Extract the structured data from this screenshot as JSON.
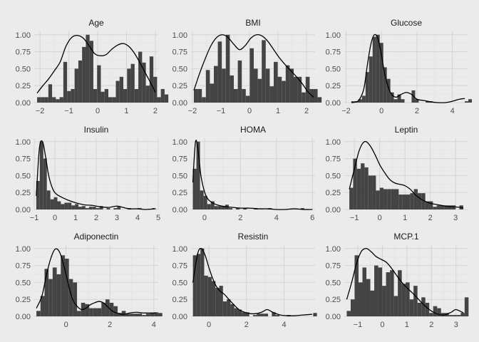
{
  "chart_data": [
    {
      "type": "bar",
      "title": "Age",
      "xlim": [
        -2.2,
        2.1
      ],
      "ylim": [
        0,
        1.05
      ],
      "xticks": [
        -2,
        -1,
        0,
        1,
        2
      ],
      "yticks": [
        0,
        0.25,
        0.5,
        0.75,
        1
      ],
      "ytick_labels": [
        "0.00",
        "0.25",
        "0.50",
        "0.75",
        "1.00"
      ],
      "hist_start": -2.1,
      "bin_width": 0.13,
      "histogram": [
        0.08,
        0.08,
        0.08,
        0.27,
        0.08,
        0.05,
        0.08,
        0.6,
        0.17,
        0.2,
        0.5,
        0.62,
        0.82,
        1.0,
        0.91,
        0.2,
        0.55,
        0.16,
        0.2,
        0.08,
        0.08,
        0.32,
        0.38,
        0.2,
        0.5,
        0.57,
        0.2,
        0.75,
        0.59,
        0.25,
        0.68,
        0.38,
        0.08,
        0.2,
        0.12
      ],
      "density": {
        "x": [
          -2.1,
          -1.9,
          -1.7,
          -1.5,
          -1.3,
          -1.1,
          -0.9,
          -0.7,
          -0.5,
          -0.3,
          -0.1,
          0.1,
          0.3,
          0.5,
          0.7,
          0.9,
          1.1,
          1.3,
          1.5,
          1.7,
          1.9,
          2.0
        ],
        "y": [
          0.14,
          0.25,
          0.35,
          0.47,
          0.6,
          0.83,
          0.96,
          0.99,
          0.95,
          0.84,
          0.72,
          0.69,
          0.71,
          0.79,
          0.85,
          0.87,
          0.82,
          0.71,
          0.56,
          0.4,
          0.24,
          0.15
        ]
      }
    },
    {
      "type": "bar",
      "title": "BMI",
      "xlim": [
        -2.05,
        2.3
      ],
      "ylim": [
        0,
        1.05
      ],
      "xticks": [
        -2,
        -1,
        0,
        1,
        2
      ],
      "yticks": [
        0,
        0.25,
        0.5,
        0.75,
        1
      ],
      "ytick_labels": [
        "0.00",
        "0.25",
        "0.50",
        "0.75",
        "1.00"
      ],
      "hist_start": -1.95,
      "bin_width": 0.14,
      "histogram": [
        0.2,
        0.2,
        0.08,
        0.48,
        0.28,
        0.54,
        0.9,
        0.5,
        1.0,
        0.4,
        0.2,
        0.62,
        0.2,
        0.1,
        0.8,
        0.5,
        0.35,
        0.92,
        0.5,
        0.24,
        0.6,
        0.38,
        0.32,
        0.55,
        0.5,
        0.38,
        0.38,
        0.15,
        0.38,
        0.2,
        0.2,
        0.08
      ],
      "density": {
        "x": [
          -1.95,
          -1.75,
          -1.55,
          -1.35,
          -1.15,
          -0.95,
          -0.75,
          -0.55,
          -0.35,
          -0.15,
          0.05,
          0.25,
          0.45,
          0.65,
          0.85,
          1.05,
          1.25,
          1.45,
          1.65,
          1.85,
          2.05,
          2.25
        ],
        "y": [
          0.18,
          0.43,
          0.65,
          0.84,
          0.96,
          1.0,
          0.96,
          0.86,
          0.78,
          0.84,
          0.95,
          1.0,
          0.98,
          0.9,
          0.78,
          0.66,
          0.56,
          0.47,
          0.38,
          0.28,
          0.16,
          0.08
        ]
      }
    },
    {
      "type": "bar",
      "title": "Glucose",
      "xlim": [
        -2.1,
        4.9
      ],
      "ylim": [
        0,
        1.05
      ],
      "xticks": [
        -2,
        0,
        2,
        4
      ],
      "yticks": [
        0,
        0.25,
        0.5,
        0.75,
        1
      ],
      "ytick_labels": [
        "0.00",
        "0.25",
        "0.50",
        "0.75",
        "1.00"
      ],
      "hist_start": -1.7,
      "bin_width": 0.2,
      "histogram": [
        0.02,
        0.02,
        0.05,
        0.1,
        0.45,
        0.68,
        0.97,
        1.0,
        0.88,
        0.52,
        0.35,
        0.15,
        0.05,
        0.12,
        0.05,
        0.0,
        0.0,
        0.18,
        0.05,
        0.0,
        0.0,
        0.02,
        0.02,
        0.0,
        0.0,
        0.0,
        0.0,
        0.0,
        0.0,
        0.0,
        0.0,
        0.0,
        0.02,
        0.05
      ],
      "density": {
        "x": [
          -1.7,
          -1.3,
          -1.0,
          -0.8,
          -0.6,
          -0.4,
          -0.2,
          0.0,
          0.2,
          0.5,
          0.8,
          1.1,
          1.4,
          1.7,
          2.0,
          2.4,
          2.8,
          3.2,
          3.6,
          4.0,
          4.4,
          4.7
        ],
        "y": [
          0.0,
          0.03,
          0.2,
          0.55,
          0.86,
          1.0,
          0.94,
          0.7,
          0.4,
          0.15,
          0.08,
          0.12,
          0.15,
          0.12,
          0.05,
          0.03,
          0.01,
          0.0,
          0.0,
          0.02,
          0.05,
          0.06
        ]
      }
    },
    {
      "type": "bar",
      "title": "Insulin",
      "xlim": [
        -1.0,
        5.0
      ],
      "ylim": [
        0,
        1.05
      ],
      "xticks": [
        -1,
        0,
        1,
        2,
        3,
        4,
        5
      ],
      "yticks": [
        0,
        0.25,
        0.5,
        0.75,
        1
      ],
      "ytick_labels": [
        "0.00",
        "0.25",
        "0.50",
        "0.75",
        "1.00"
      ],
      "hist_start": -0.9,
      "bin_width": 0.17,
      "histogram": [
        0.42,
        1.0,
        0.75,
        0.28,
        0.15,
        0.18,
        0.12,
        0.08,
        0.1,
        0.1,
        0.06,
        0.08,
        0.04,
        0.05,
        0.02,
        0.04,
        0.04,
        0.02,
        0.05,
        0.0,
        0.02,
        0.0,
        0.02,
        0.04,
        0.0,
        0.0,
        0.02,
        0.0,
        0.0,
        0.02,
        0.0,
        0.0,
        0.0,
        0.02
      ],
      "density": {
        "x": [
          -0.9,
          -0.75,
          -0.6,
          -0.45,
          -0.3,
          -0.1,
          0.1,
          0.4,
          0.7,
          1.0,
          1.4,
          1.8,
          2.2,
          2.6,
          3.0,
          3.3,
          3.6,
          4.0,
          4.4,
          4.8
        ],
        "y": [
          0.2,
          0.9,
          1.0,
          0.78,
          0.5,
          0.3,
          0.22,
          0.17,
          0.13,
          0.1,
          0.07,
          0.06,
          0.04,
          0.03,
          0.05,
          0.03,
          0.01,
          0.01,
          0.0,
          0.01
        ]
      }
    },
    {
      "type": "bar",
      "title": "HOMA",
      "xlim": [
        -0.75,
        6.15
      ],
      "ylim": [
        0,
        1.05
      ],
      "xticks": [
        0,
        2,
        4,
        6
      ],
      "yticks": [
        0,
        0.25,
        0.5,
        0.75,
        1
      ],
      "ytick_labels": [
        "0.00",
        "0.25",
        "0.50",
        "0.75",
        "1.00"
      ],
      "hist_start": -0.65,
      "bin_width": 0.2,
      "histogram": [
        0.6,
        1.0,
        0.28,
        0.2,
        0.08,
        0.12,
        0.05,
        0.05,
        0.05,
        0.07,
        0.02,
        0.0,
        0.02,
        0.0,
        0.02,
        0.0,
        0.0,
        0.02,
        0.0,
        0.0,
        0.0,
        0.02,
        0.0,
        0.0,
        0.0,
        0.0,
        0.0,
        0.0,
        0.0,
        0.0,
        0.02
      ],
      "density": {
        "x": [
          -0.65,
          -0.5,
          -0.35,
          -0.2,
          0.0,
          0.2,
          0.5,
          0.8,
          1.2,
          1.6,
          2.0,
          2.5,
          3.0,
          3.5,
          4.0,
          4.5,
          5.0,
          5.5,
          6.0
        ],
        "y": [
          0.4,
          1.0,
          0.85,
          0.5,
          0.26,
          0.15,
          0.09,
          0.06,
          0.04,
          0.03,
          0.02,
          0.02,
          0.01,
          0.01,
          0.0,
          0.0,
          0.01,
          0.0,
          0.0
        ]
      }
    },
    {
      "type": "bar",
      "title": "Leptin",
      "xlim": [
        -1.4,
        3.5
      ],
      "ylim": [
        0,
        1.05
      ],
      "xticks": [
        -1,
        0,
        1,
        2,
        3
      ],
      "yticks": [
        0,
        0.25,
        0.5,
        0.75,
        1
      ],
      "ytick_labels": [
        "0.00",
        "0.25",
        "0.50",
        "0.75",
        "1.00"
      ],
      "hist_start": -1.2,
      "bin_width": 0.15,
      "histogram": [
        0.32,
        0.75,
        0.6,
        0.68,
        0.62,
        0.5,
        0.5,
        0.28,
        0.32,
        0.3,
        0.3,
        0.3,
        0.3,
        0.22,
        0.22,
        0.22,
        0.24,
        0.3,
        0.24,
        0.24,
        0.12,
        0.12,
        0.04,
        0.06,
        0.06,
        0.06,
        0.06,
        0.06,
        0.0,
        0.06
      ],
      "density": {
        "x": [
          -1.2,
          -1.0,
          -0.8,
          -0.6,
          -0.4,
          -0.2,
          0.0,
          0.2,
          0.4,
          0.6,
          0.8,
          1.0,
          1.2,
          1.4,
          1.6,
          1.8,
          2.0,
          2.3,
          2.6,
          2.9,
          3.2,
          3.3
        ],
        "y": [
          0.3,
          0.6,
          0.88,
          1.0,
          0.95,
          0.82,
          0.66,
          0.54,
          0.44,
          0.39,
          0.37,
          0.35,
          0.3,
          0.22,
          0.16,
          0.12,
          0.09,
          0.07,
          0.05,
          0.04,
          0.03,
          0.02
        ]
      }
    },
    {
      "type": "bar",
      "title": "Adiponectin",
      "xlim": [
        -1.45,
        4.2
      ],
      "ylim": [
        0,
        1.05
      ],
      "xticks": [
        0,
        2,
        4
      ],
      "yticks": [
        0,
        0.25,
        0.5,
        0.75,
        1
      ],
      "ytick_labels": [
        "0.00",
        "0.25",
        "0.50",
        "0.75",
        "1.00"
      ],
      "hist_start": -1.35,
      "bin_width": 0.185,
      "histogram": [
        0.08,
        0.3,
        0.7,
        0.55,
        0.72,
        0.62,
        0.9,
        0.85,
        0.55,
        0.5,
        0.08,
        0.2,
        0.18,
        0.12,
        0.12,
        0.12,
        0.2,
        0.25,
        0.2,
        0.15,
        0.05,
        0.08,
        0.04,
        0.04,
        0.04,
        0.04,
        0.02,
        0.04,
        0.05,
        0.06,
        0.05
      ],
      "density": {
        "x": [
          -1.35,
          -1.1,
          -0.9,
          -0.7,
          -0.5,
          -0.3,
          -0.1,
          0.1,
          0.3,
          0.5,
          0.7,
          0.9,
          1.1,
          1.3,
          1.5,
          1.7,
          1.9,
          2.1,
          2.3,
          2.6,
          2.9,
          3.2,
          3.5,
          3.8,
          4.1
        ],
        "y": [
          0.12,
          0.3,
          0.6,
          0.85,
          0.99,
          0.95,
          0.75,
          0.48,
          0.25,
          0.15,
          0.1,
          0.12,
          0.17,
          0.2,
          0.22,
          0.2,
          0.14,
          0.08,
          0.05,
          0.03,
          0.05,
          0.06,
          0.05,
          0.05,
          0.05
        ]
      }
    },
    {
      "type": "bar",
      "title": "Resistin",
      "xlim": [
        -0.95,
        5.65
      ],
      "ylim": [
        0,
        1.05
      ],
      "xticks": [
        0,
        2,
        4
      ],
      "yticks": [
        0,
        0.25,
        0.5,
        0.75,
        1
      ],
      "ytick_labels": [
        "0.00",
        "0.25",
        "0.50",
        "0.75",
        "1.00"
      ],
      "hist_start": -0.85,
      "bin_width": 0.2,
      "histogram": [
        0.9,
        0.92,
        1.0,
        0.6,
        0.58,
        0.52,
        0.42,
        0.45,
        0.22,
        0.25,
        0.18,
        0.12,
        0.1,
        0.06,
        0.06,
        0.0,
        0.02,
        0.04,
        0.04,
        0.04,
        0.0,
        0.06,
        0.02,
        0.0,
        0.0,
        0.02,
        0.0,
        0.0,
        0.0,
        0.0,
        0.0,
        0.0,
        0.05
      ],
      "density": {
        "x": [
          -0.85,
          -0.6,
          -0.4,
          -0.2,
          0.0,
          0.2,
          0.4,
          0.6,
          0.8,
          1.0,
          1.3,
          1.6,
          1.9,
          2.2,
          2.5,
          2.8,
          3.1,
          3.4,
          3.8,
          4.2,
          4.6,
          5.0,
          5.5
        ],
        "y": [
          0.5,
          0.92,
          1.0,
          0.9,
          0.72,
          0.56,
          0.44,
          0.37,
          0.33,
          0.27,
          0.18,
          0.1,
          0.06,
          0.04,
          0.04,
          0.06,
          0.1,
          0.06,
          0.02,
          0.01,
          0.01,
          0.02,
          0.03
        ]
      }
    },
    {
      "type": "bar",
      "title": "MCP.1",
      "xlim": [
        -1.55,
        3.5
      ],
      "ylim": [
        0,
        1.05
      ],
      "xticks": [
        -1,
        0,
        1,
        2,
        3
      ],
      "yticks": [
        0,
        0.25,
        0.5,
        0.75,
        1
      ],
      "ytick_labels": [
        "0.00",
        "0.25",
        "0.50",
        "0.75",
        "1.00"
      ],
      "hist_start": -1.45,
      "bin_width": 0.16,
      "histogram": [
        0.08,
        0.25,
        0.9,
        0.5,
        0.72,
        0.55,
        0.38,
        0.75,
        0.72,
        0.45,
        0.65,
        0.68,
        0.3,
        0.68,
        0.48,
        0.5,
        0.25,
        0.45,
        0.2,
        0.28,
        0.2,
        0.05,
        0.15,
        0.12,
        0.05,
        0.05,
        0.02,
        0.02,
        0.02,
        0.05,
        0.28
      ],
      "density": {
        "x": [
          -1.45,
          -1.25,
          -1.05,
          -0.85,
          -0.65,
          -0.45,
          -0.25,
          -0.05,
          0.15,
          0.35,
          0.55,
          0.75,
          0.95,
          1.15,
          1.35,
          1.55,
          1.75,
          1.95,
          2.2,
          2.5,
          2.8,
          3.0,
          3.3
        ],
        "y": [
          0.25,
          0.5,
          0.78,
          0.96,
          1.0,
          0.95,
          0.88,
          0.84,
          0.8,
          0.72,
          0.62,
          0.52,
          0.44,
          0.37,
          0.3,
          0.22,
          0.15,
          0.09,
          0.04,
          0.02,
          0.06,
          0.1,
          0.05
        ]
      }
    }
  ]
}
